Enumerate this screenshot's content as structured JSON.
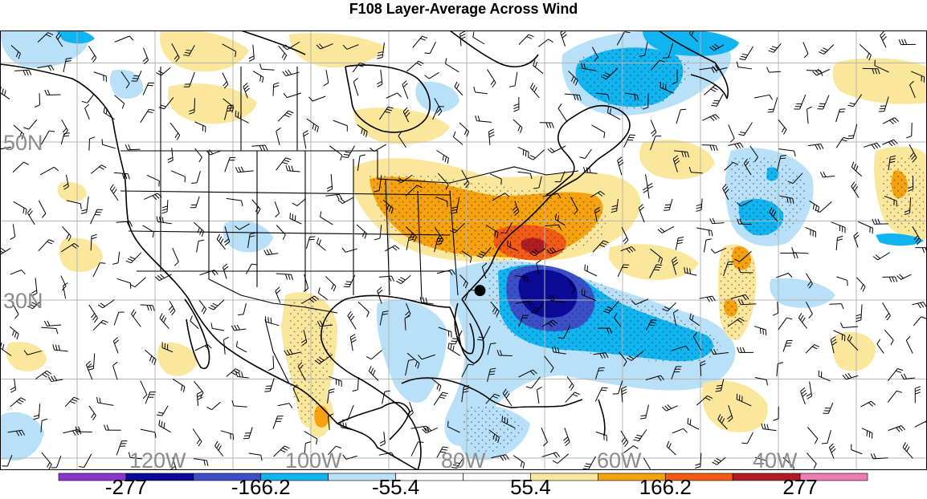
{
  "title": "F108 Layer-Average Across Wind",
  "map": {
    "lat_labels": [
      {
        "text": "50N",
        "lat": 50
      },
      {
        "text": "30N",
        "lat": 30
      }
    ],
    "lon_labels": [
      {
        "text": "120W",
        "lon": -120
      },
      {
        "text": "100W",
        "lon": -100
      },
      {
        "text": "80W",
        "lon": -80
      },
      {
        "text": "60W",
        "lon": -60
      },
      {
        "text": "40W",
        "lon": -40
      }
    ],
    "marker": {
      "name": "storm-center-marker",
      "lat": 31.2,
      "lon": -78.3
    },
    "fill_colors": {
      "neg_277": "#8a35cf",
      "neg_222": "#0a0a9a",
      "neg_166": "#3b50c8",
      "neg_111": "#10b4f0",
      "neg_55": "#b8e0f8",
      "zero": "#ffffff",
      "pos_55": "#fbe79c",
      "pos_111": "#f5a20e",
      "pos_166": "#f25a16",
      "pos_222": "#b11c22",
      "pos_277": "#f07ab4"
    }
  },
  "colorbar": {
    "colors": [
      "#8a35cf",
      "#0a0a9a",
      "#3b50c8",
      "#10b4f0",
      "#b8e0f8",
      "#ffffff",
      "#ffffff",
      "#fbe79c",
      "#f5a20e",
      "#f25a16",
      "#b11c22",
      "#f07ab4"
    ],
    "labels": [
      "-277",
      "-166.2",
      "-55.4",
      "55.4",
      "166.2",
      "277"
    ]
  }
}
